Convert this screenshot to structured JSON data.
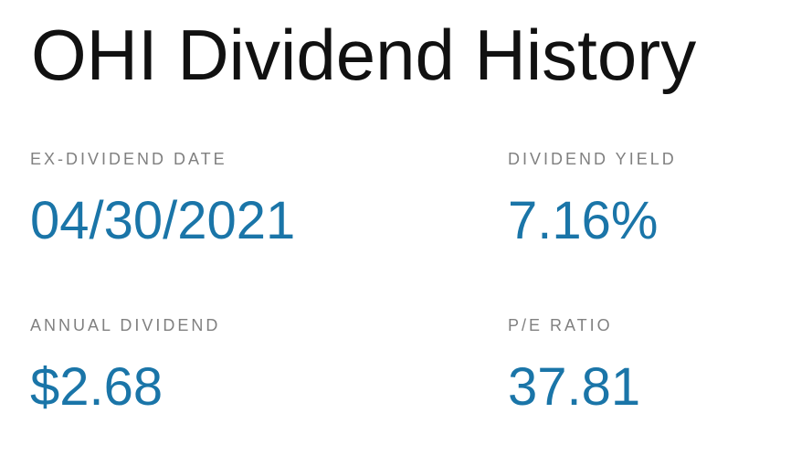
{
  "page": {
    "title": "OHI Dividend History"
  },
  "stats": {
    "ex_dividend_date": {
      "label": "EX-DIVIDEND DATE",
      "value": "04/30/2021"
    },
    "dividend_yield": {
      "label": "DIVIDEND YIELD",
      "value": "7.16%"
    },
    "annual_dividend": {
      "label": "ANNUAL DIVIDEND",
      "value": "$2.68"
    },
    "pe_ratio": {
      "label": "P/E RATIO",
      "value": "37.81"
    }
  },
  "colors": {
    "value_accent": "#1a75a8",
    "label_gray": "#808080",
    "title_text": "#111111"
  }
}
